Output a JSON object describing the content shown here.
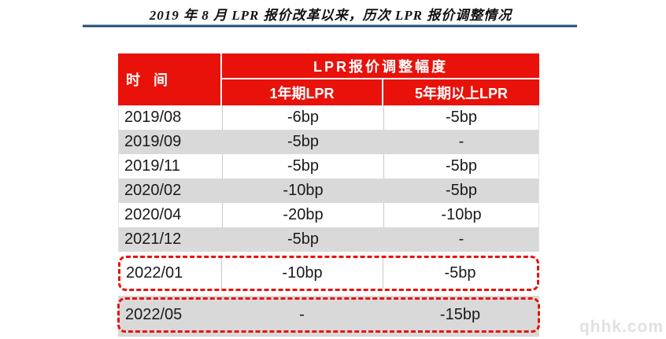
{
  "title": "2019 年 8 月 LPR 报价改革以来，历次 LPR 报价调整情况",
  "watermark": "qhhk.com",
  "colors": {
    "header_red": "#E8120B",
    "row_gray": "#D9D9D9",
    "highlight_dash_red": "#E8120B",
    "title_underline_blue": "#17375E",
    "header_text": "#FFFFFF",
    "body_text": "#1A1A1A",
    "watermark_gray": "#E1E1E1"
  },
  "table": {
    "col_time": "时 间",
    "header_merged": "LPR报价调整幅度",
    "col_1y": "1年期LPR",
    "col_5y": "5年期以上LPR",
    "rows": [
      {
        "date": "2019/08",
        "lpr_1y": "-6bp",
        "lpr_5y": "-5bp"
      },
      {
        "date": "2019/09",
        "lpr_1y": "-5bp",
        "lpr_5y": "-"
      },
      {
        "date": "2019/11",
        "lpr_1y": "-5bp",
        "lpr_5y": "-5bp"
      },
      {
        "date": "2020/02",
        "lpr_1y": "-10bp",
        "lpr_5y": "-5bp"
      },
      {
        "date": "2020/04",
        "lpr_1y": "-20bp",
        "lpr_5y": "-10bp"
      },
      {
        "date": "2021/12",
        "lpr_1y": "-5bp",
        "lpr_5y": "-"
      },
      {
        "date": "2022/01",
        "lpr_1y": "-10bp",
        "lpr_5y": "-5bp"
      },
      {
        "date": "2022/05",
        "lpr_1y": "-",
        "lpr_5y": "-15bp"
      }
    ]
  },
  "chart_data": {
    "type": "table",
    "title": "2019 年 8 月 LPR 报价改革以来，历次 LPR 报价调整情况",
    "columns": [
      "时间",
      "1年期LPR",
      "5年期以上LPR"
    ],
    "rows": [
      [
        "2019/08",
        "-6bp",
        "-5bp"
      ],
      [
        "2019/09",
        "-5bp",
        "-"
      ],
      [
        "2019/11",
        "-5bp",
        "-5bp"
      ],
      [
        "2020/02",
        "-10bp",
        "-5bp"
      ],
      [
        "2020/04",
        "-20bp",
        "-10bp"
      ],
      [
        "2021/12",
        "-5bp",
        "-"
      ],
      [
        "2022/01",
        "-10bp",
        "-5bp"
      ],
      [
        "2022/05",
        "-",
        "-15bp"
      ]
    ],
    "highlighted_rows": [
      "2022/01",
      "2022/05"
    ]
  }
}
